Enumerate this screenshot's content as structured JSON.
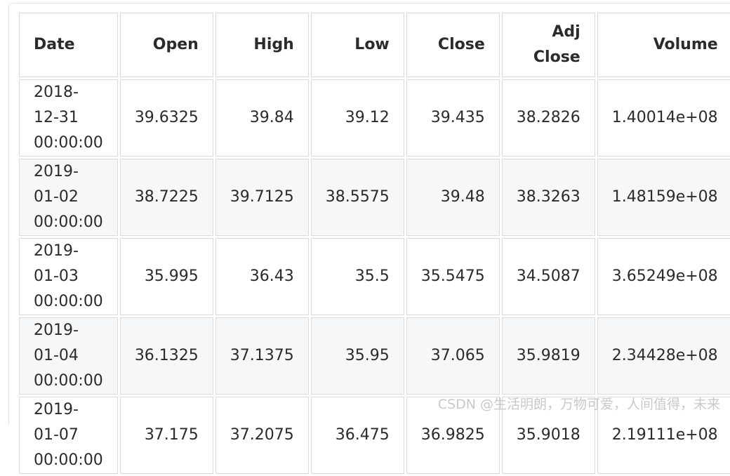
{
  "table": {
    "headers": {
      "date": "Date",
      "open": "Open",
      "high": "High",
      "low": "Low",
      "close": "Close",
      "adj_close_line1": "Adj",
      "adj_close_line2": "Close",
      "volume": "Volume"
    },
    "rows": [
      {
        "date": "2018-12-31",
        "time": "00:00:00",
        "open": "39.6325",
        "high": "39.84",
        "low": "39.12",
        "close": "39.435",
        "adj_close": "38.2826",
        "volume": "1.40014e+08"
      },
      {
        "date": "2019-01-02",
        "time": "00:00:00",
        "open": "38.7225",
        "high": "39.7125",
        "low": "38.5575",
        "close": "39.48",
        "adj_close": "38.3263",
        "volume": "1.48159e+08"
      },
      {
        "date": "2019-01-03",
        "time": "00:00:00",
        "open": "35.995",
        "high": "36.43",
        "low": "35.5",
        "close": "35.5475",
        "adj_close": "34.5087",
        "volume": "3.65249e+08"
      },
      {
        "date": "2019-01-04",
        "time": "00:00:00",
        "open": "36.1325",
        "high": "37.1375",
        "low": "35.95",
        "close": "37.065",
        "adj_close": "35.9819",
        "volume": "2.34428e+08"
      },
      {
        "date": "2019-01-07",
        "time": "00:00:00",
        "open": "37.175",
        "high": "37.2075",
        "low": "36.475",
        "close": "36.9825",
        "adj_close": "35.9018",
        "volume": "2.19111e+08"
      }
    ]
  },
  "watermark": "CSDN @生活明朗，万物可爱，人间值得，未来"
}
